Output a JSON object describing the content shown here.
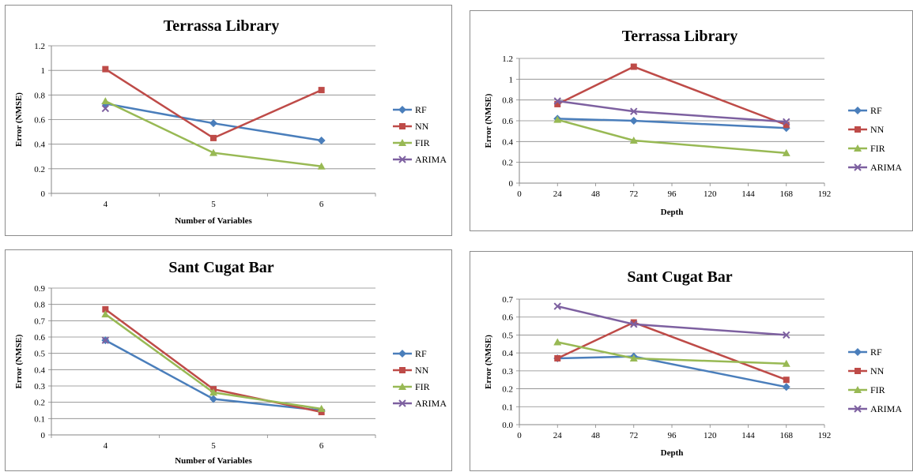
{
  "colors": {
    "RF": "#4a7ebb",
    "NN": "#be4b48",
    "FIR": "#98b954",
    "ARIMA": "#7d60a0"
  },
  "markers": {
    "RF": "diamond",
    "NN": "square",
    "FIR": "triangle",
    "ARIMA": "x"
  },
  "chart_data": [
    {
      "type": "line",
      "title": "Terrassa Library",
      "xlabel": "Number of Variables",
      "ylabel": "Error (NMSE)",
      "xscale": "category",
      "categories": [
        "4",
        "5",
        "6"
      ],
      "ylim": [
        0,
        1.2
      ],
      "yticks": [
        "0",
        "0.2",
        "0.4",
        "0.6",
        "0.8",
        "1",
        "1.2"
      ],
      "legend_position": "right",
      "grid": "horizontal",
      "series": [
        {
          "name": "RF",
          "values": [
            0.73,
            0.57,
            0.43
          ]
        },
        {
          "name": "NN",
          "values": [
            1.01,
            0.45,
            0.84
          ]
        },
        {
          "name": "FIR",
          "values": [
            0.75,
            0.33,
            0.22
          ]
        },
        {
          "name": "ARIMA",
          "values": [
            0.69,
            null,
            null
          ]
        }
      ]
    },
    {
      "type": "line",
      "title": "Terrassa Library",
      "xlabel": "Depth",
      "ylabel": "Error (NMSE)",
      "xscale": "numeric",
      "x": [
        24,
        72,
        168
      ],
      "xlim": [
        0,
        192
      ],
      "xticks": [
        "0",
        "24",
        "48",
        "72",
        "96",
        "120",
        "144",
        "168",
        "192"
      ],
      "ylim": [
        0,
        1.2
      ],
      "yticks": [
        "0",
        "0.2",
        "0.4",
        "0.6",
        "0.8",
        "1",
        "1.2"
      ],
      "legend_position": "right",
      "grid": "horizontal",
      "series": [
        {
          "name": "RF",
          "values": [
            0.62,
            0.6,
            0.53
          ]
        },
        {
          "name": "NN",
          "values": [
            0.76,
            1.12,
            0.56
          ]
        },
        {
          "name": "FIR",
          "values": [
            0.61,
            0.41,
            0.29
          ]
        },
        {
          "name": "ARIMA",
          "values": [
            0.79,
            0.69,
            0.59
          ]
        }
      ]
    },
    {
      "type": "line",
      "title": "Sant Cugat Bar",
      "xlabel": "Number of Variables",
      "ylabel": "Error (NMSE)",
      "xscale": "category",
      "categories": [
        "4",
        "5",
        "6"
      ],
      "ylim": [
        0,
        0.9
      ],
      "yticks": [
        "0",
        "0.1",
        "0.2",
        "0.3",
        "0.4",
        "0.5",
        "0.6",
        "0.7",
        "0.8",
        "0.9"
      ],
      "legend_position": "right",
      "grid": "horizontal",
      "series": [
        {
          "name": "RF",
          "values": [
            0.58,
            0.22,
            0.15
          ]
        },
        {
          "name": "NN",
          "values": [
            0.77,
            0.28,
            0.14
          ]
        },
        {
          "name": "FIR",
          "values": [
            0.74,
            0.26,
            0.16
          ]
        },
        {
          "name": "ARIMA",
          "values": [
            0.58,
            null,
            null
          ]
        }
      ]
    },
    {
      "type": "line",
      "title": "Sant Cugat Bar",
      "xlabel": "Depth",
      "ylabel": "Error (NMSE)",
      "xscale": "numeric",
      "x": [
        24,
        72,
        168
      ],
      "xlim": [
        0,
        192
      ],
      "xticks": [
        "0",
        "24",
        "48",
        "72",
        "96",
        "120",
        "144",
        "168",
        "192"
      ],
      "ylim": [
        0,
        0.7
      ],
      "yticks": [
        "0.0",
        "0.1",
        "0.2",
        "0.3",
        "0.4",
        "0.5",
        "0.6",
        "0.7"
      ],
      "legend_position": "right",
      "grid": "horizontal",
      "series": [
        {
          "name": "RF",
          "values": [
            0.37,
            0.38,
            0.21
          ]
        },
        {
          "name": "NN",
          "values": [
            0.37,
            0.57,
            0.25
          ]
        },
        {
          "name": "FIR",
          "values": [
            0.46,
            0.37,
            0.34
          ]
        },
        {
          "name": "ARIMA",
          "values": [
            0.66,
            0.56,
            0.5
          ]
        }
      ]
    }
  ]
}
